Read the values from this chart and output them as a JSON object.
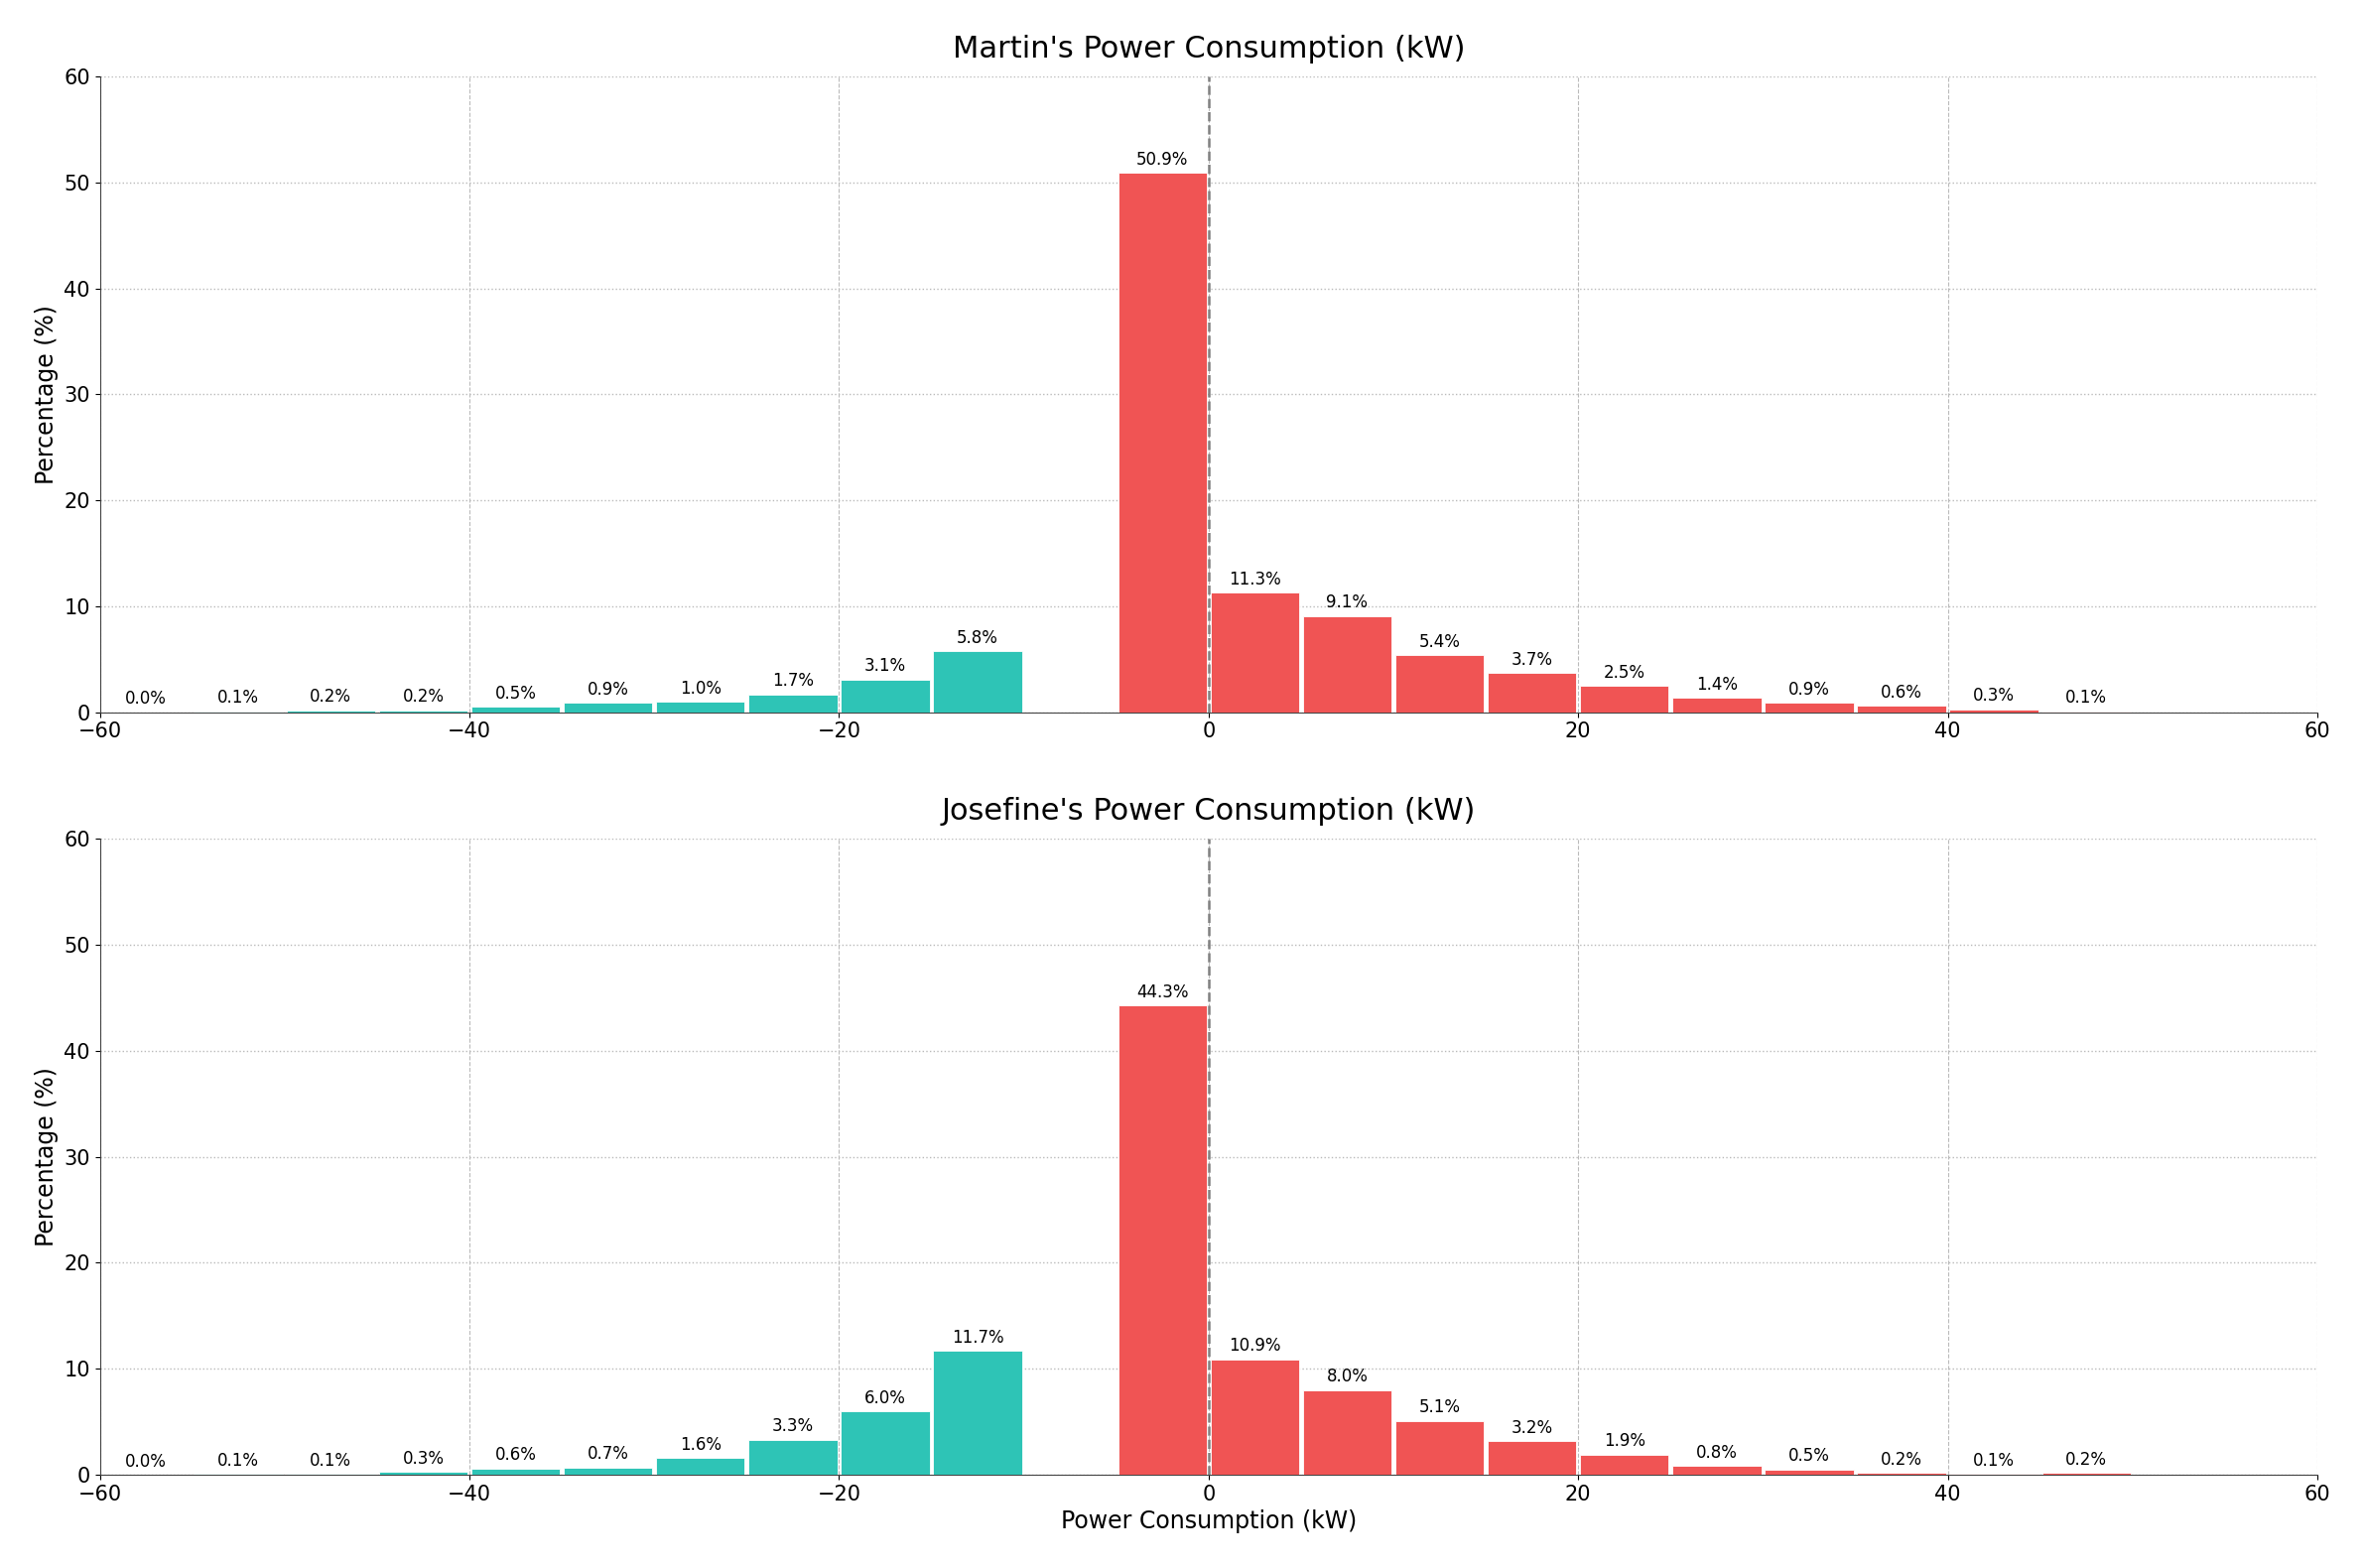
{
  "martin": {
    "title": "Martin's Power Consumption (kW)",
    "values": [
      0.0,
      0.1,
      0.2,
      0.2,
      0.5,
      0.9,
      1.0,
      1.7,
      3.1,
      5.8,
      50.9,
      11.3,
      9.1,
      5.4,
      3.7,
      2.5,
      1.4,
      0.9,
      0.6,
      0.3,
      0.1
    ],
    "bin_centers": [
      -57.5,
      -52.5,
      -47.5,
      -42.5,
      -37.5,
      -32.5,
      -27.5,
      -22.5,
      -17.5,
      -12.5,
      -2.5,
      2.5,
      7.5,
      12.5,
      17.5,
      22.5,
      27.5,
      32.5,
      37.5,
      42.5,
      47.5
    ],
    "colors": [
      "#2ec4b6",
      "#2ec4b6",
      "#2ec4b6",
      "#2ec4b6",
      "#2ec4b6",
      "#2ec4b6",
      "#2ec4b6",
      "#2ec4b6",
      "#2ec4b6",
      "#2ec4b6",
      "#f05454",
      "#f05454",
      "#f05454",
      "#f05454",
      "#f05454",
      "#f05454",
      "#f05454",
      "#f05454",
      "#f05454",
      "#f05454",
      "#f05454"
    ]
  },
  "josefine": {
    "title": "Josefine's Power Consumption (kW)",
    "values": [
      0.0,
      0.1,
      0.1,
      0.3,
      0.6,
      0.7,
      1.6,
      3.3,
      6.0,
      11.7,
      44.3,
      10.9,
      8.0,
      5.1,
      3.2,
      1.9,
      0.8,
      0.5,
      0.2,
      0.1,
      0.2
    ],
    "bin_centers": [
      -57.5,
      -52.5,
      -47.5,
      -42.5,
      -37.5,
      -32.5,
      -27.5,
      -22.5,
      -17.5,
      -12.5,
      -2.5,
      2.5,
      7.5,
      12.5,
      17.5,
      22.5,
      27.5,
      32.5,
      37.5,
      42.5,
      47.5
    ],
    "colors": [
      "#2ec4b6",
      "#2ec4b6",
      "#2ec4b6",
      "#2ec4b6",
      "#2ec4b6",
      "#2ec4b6",
      "#2ec4b6",
      "#2ec4b6",
      "#2ec4b6",
      "#2ec4b6",
      "#f05454",
      "#f05454",
      "#f05454",
      "#f05454",
      "#f05454",
      "#f05454",
      "#f05454",
      "#f05454",
      "#f05454",
      "#f05454",
      "#f05454"
    ]
  },
  "bin_width": 5,
  "xlim": [
    -60,
    60
  ],
  "ylim": [
    0,
    60
  ],
  "xlabel": "Power Consumption (kW)",
  "ylabel": "Percentage (%)",
  "xticks": [
    -60,
    -40,
    -20,
    0,
    20,
    40,
    60
  ],
  "yticks": [
    0,
    10,
    20,
    30,
    40,
    50,
    60
  ],
  "vline_x": 0,
  "background_color": "#ffffff",
  "grid_color": "#bbbbbb",
  "title_fontsize": 22,
  "label_fontsize": 17,
  "tick_fontsize": 15,
  "bar_label_fontsize": 12
}
